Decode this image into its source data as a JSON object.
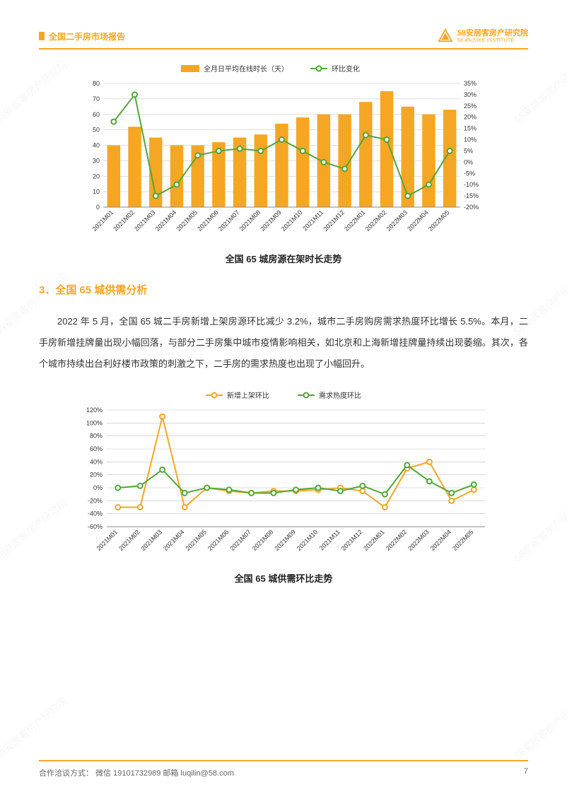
{
  "header": {
    "title": "全国二手房市场报告",
    "brand_main": "58安居客房产研究院",
    "brand_sub": "58 ANJUKE INSTITUTE"
  },
  "watermark_text": "58安居客房产研究院",
  "chart1": {
    "type": "bar+line",
    "legend_bar": "全月日平均在线时长（天）",
    "legend_line": "环比变化",
    "title": "全国 65 城房源在架时长走势",
    "categories": [
      "2021M01",
      "2021M02",
      "2021M03",
      "2021M04",
      "2021M05",
      "2021M06",
      "2021M07",
      "2021M08",
      "2021M09",
      "2021M10",
      "2021M11",
      "2021M12",
      "2022M01",
      "2022M02",
      "2022M03",
      "2022M04",
      "2022M05"
    ],
    "bar_values": [
      40,
      52,
      45,
      40,
      40,
      42,
      45,
      47,
      54,
      58,
      60,
      60,
      68,
      75,
      65,
      60,
      63
    ],
    "line_values": [
      18,
      30,
      -15,
      -10,
      3,
      5,
      6,
      5,
      10,
      5,
      0,
      -3,
      12,
      10,
      -15,
      -10,
      5
    ],
    "left_ylim": [
      0,
      80
    ],
    "left_step": 10,
    "right_ylim": [
      -20,
      35
    ],
    "right_step": 5,
    "bar_color": "#f5a623",
    "line_color": "#52a638",
    "marker_color": "#52a638",
    "grid_color": "#bfbfbf",
    "bg": "#ffffff",
    "label_fontsize": 9,
    "axis_fontsize": 9
  },
  "section": {
    "heading": "3．全国 65 城供需分析",
    "paragraph": "2022 年 5 月，全国 65 城二手房新增上架房源环比减少 3.2%，城市二手房购房需求热度环比增长 5.5%。本月，二手房新增挂牌量出现小幅回落，与部分二手房集中城市疫情影响相关，如北京和上海新增挂牌量持续出现萎缩。其次，各个城市持续出台利好楼市政策的刺激之下，二手房的需求热度也出现了小幅回升。"
  },
  "chart2": {
    "type": "line",
    "legend_a": "新增上架环比",
    "legend_b": "需求热度环比",
    "title": "全国 65 城供需环比走势",
    "categories": [
      "2021M01",
      "2021M02",
      "2021M03",
      "2021M04",
      "2021M05",
      "2021M06",
      "2021M07",
      "2021M08",
      "2021M09",
      "2021M10",
      "2021M11",
      "2021M12",
      "2022M01",
      "2022M02",
      "2022M03",
      "2022M04",
      "2022M05"
    ],
    "series_a": [
      -30,
      -30,
      110,
      -30,
      0,
      -5,
      -8,
      -5,
      -5,
      -3,
      0,
      -5,
      -30,
      30,
      40,
      -20,
      -3
    ],
    "series_b": [
      0,
      3,
      28,
      -8,
      0,
      -3,
      -8,
      -8,
      -3,
      0,
      -5,
      3,
      -10,
      35,
      10,
      -8,
      5
    ],
    "ylim": [
      -60,
      120
    ],
    "ystep": 20,
    "color_a": "#f5a623",
    "color_b": "#52a638",
    "grid_color": "#bfbfbf",
    "bg": "#ffffff",
    "label_fontsize": 9
  },
  "footer": {
    "contact": "合作洽谈方式：  微信 19101732989     邮箱  luqilin@58.com",
    "page": "7"
  }
}
